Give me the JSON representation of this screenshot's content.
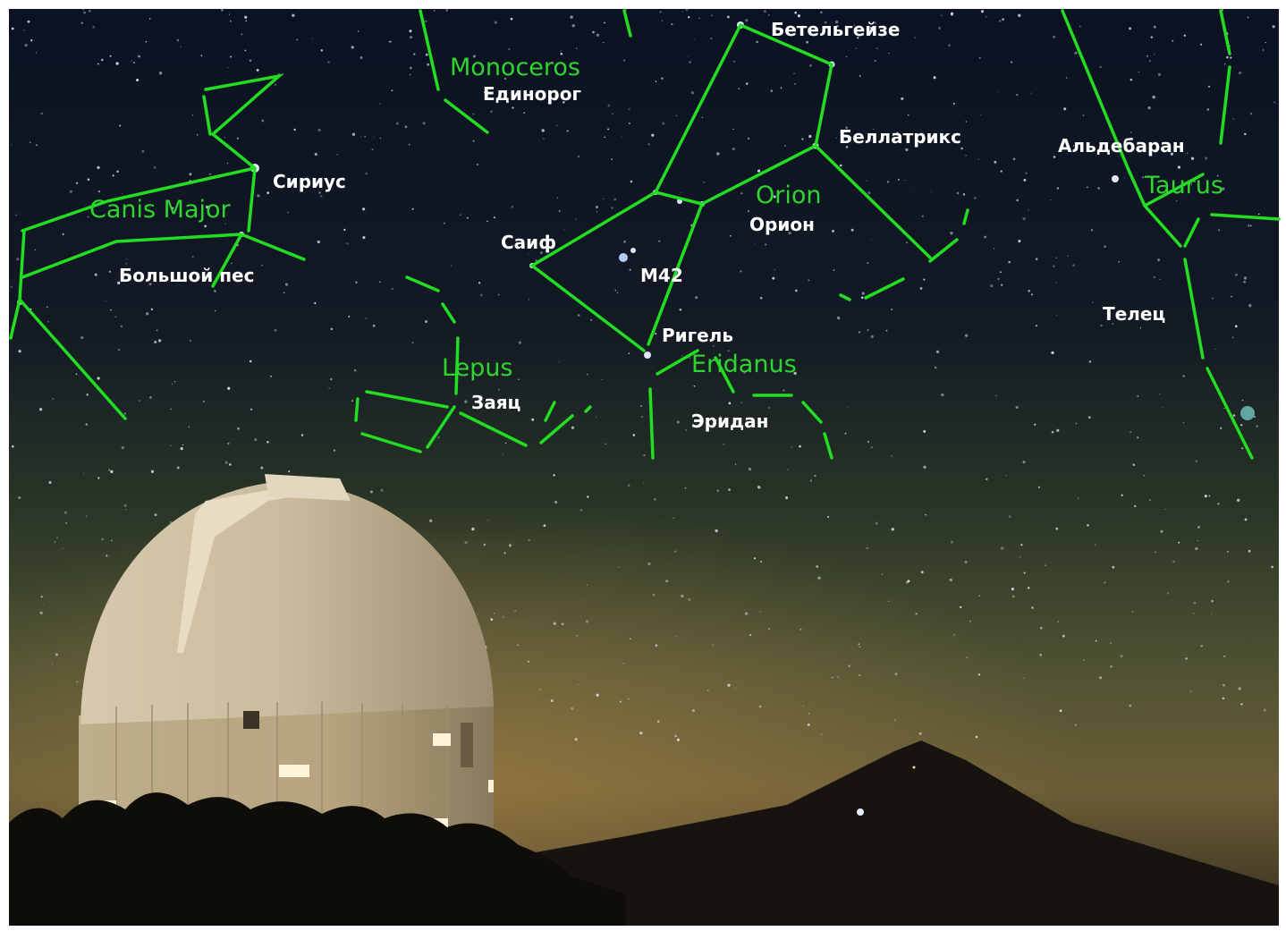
{
  "constellations": [
    {
      "latin": "Monoceros",
      "russian": "Единорог"
    },
    {
      "latin": "Canis Major",
      "russian": "Большой пес"
    },
    {
      "latin": "Orion",
      "russian": "Орион"
    },
    {
      "latin": "Lepus",
      "russian": "Заяц"
    },
    {
      "latin": "Eridanus",
      "russian": "Эридан"
    },
    {
      "latin": "Taurus",
      "russian": "Телец"
    }
  ],
  "stars": [
    "Бетельгейзе",
    "Беллатрикс",
    "Альдебаран",
    "Сириус",
    "Саиф",
    "M42",
    "Ригель"
  ]
}
